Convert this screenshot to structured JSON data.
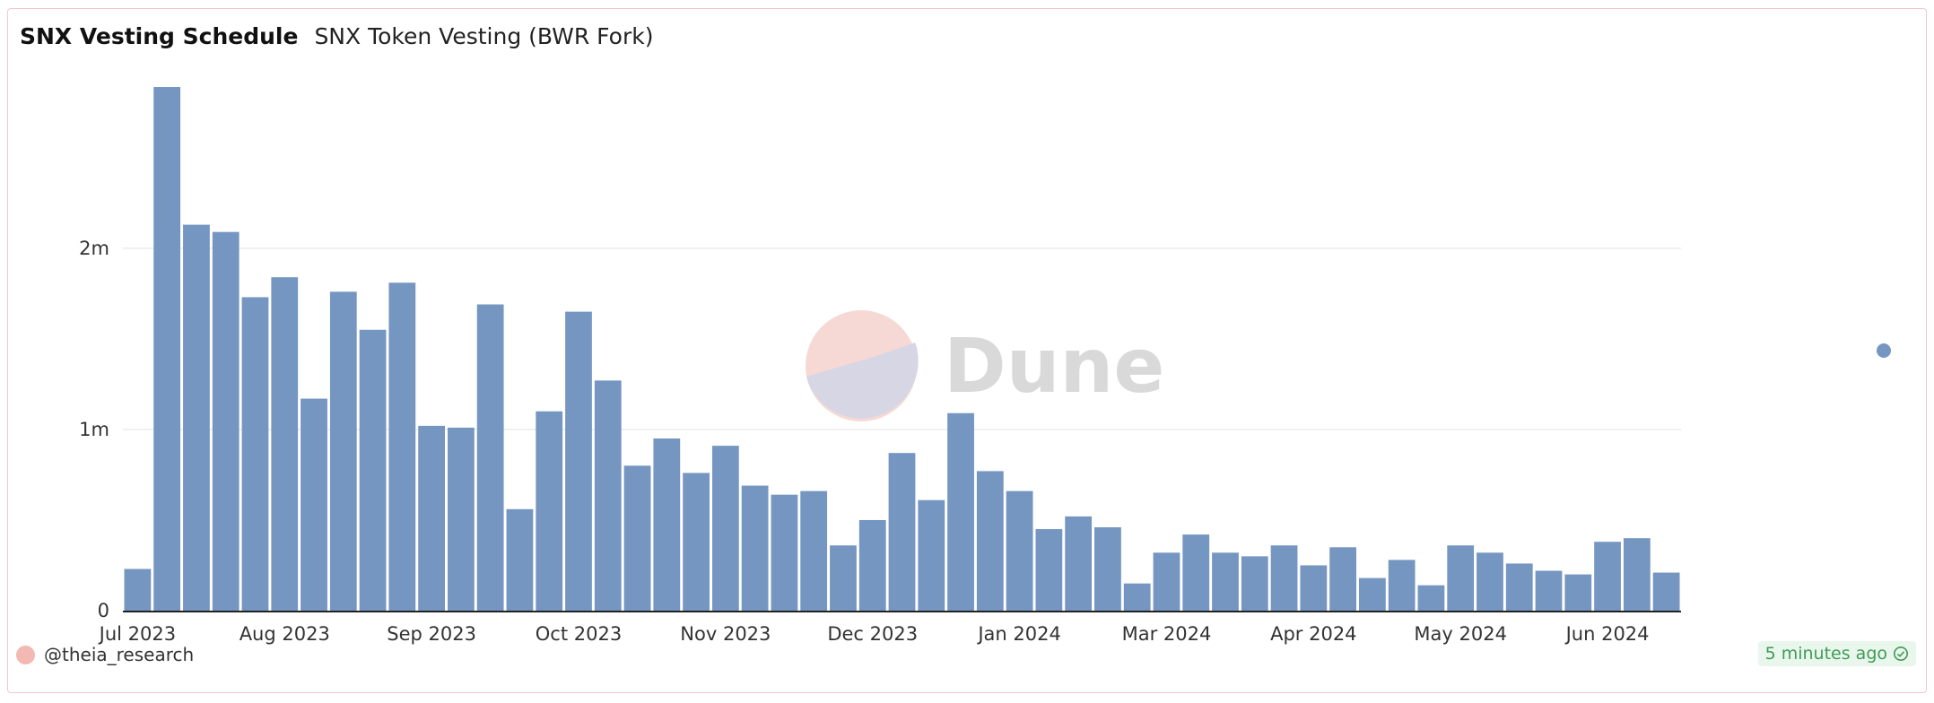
{
  "header": {
    "title": "SNX Vesting Schedule",
    "subtitle": "SNX Token Vesting (BWR Fork)"
  },
  "footer": {
    "username": "@theia_research",
    "updated": "5 minutes ago"
  },
  "watermark": {
    "text": "Dune"
  },
  "colors": {
    "bar": "#7596c0",
    "grid": "#ececec",
    "axis": "#222222"
  },
  "chart_data": {
    "type": "bar",
    "title": "SNX Token Vesting (BWR Fork)",
    "xlabel": "",
    "ylabel": "",
    "ylim": [
      0,
      2900000
    ],
    "y_ticks": [
      {
        "value": 0,
        "label": "0"
      },
      {
        "value": 1000000,
        "label": "1m"
      },
      {
        "value": 2000000,
        "label": "2m"
      }
    ],
    "x_tick_labels": [
      {
        "label": "Jul 2023",
        "index": 0.5
      },
      {
        "label": "Aug 2023",
        "index": 5.5
      },
      {
        "label": "Sep 2023",
        "index": 10.5
      },
      {
        "label": "Oct 2023",
        "index": 15.5
      },
      {
        "label": "Nov 2023",
        "index": 20.5
      },
      {
        "label": "Dec 2023",
        "index": 25.5
      },
      {
        "label": "Jan 2024",
        "index": 30.5
      },
      {
        "label": "Mar 2024",
        "index": 35.5
      },
      {
        "label": "Apr 2024",
        "index": 40.5
      },
      {
        "label": "May 2024",
        "index": 45.5
      },
      {
        "label": "Jun 2024",
        "index": 50.5
      }
    ],
    "grid": true,
    "legend": "right",
    "values": [
      230000,
      2890000,
      2130000,
      2090000,
      1730000,
      1840000,
      1170000,
      1760000,
      1550000,
      1810000,
      1020000,
      1010000,
      1690000,
      560000,
      1100000,
      1650000,
      1270000,
      800000,
      950000,
      760000,
      910000,
      690000,
      640000,
      660000,
      360000,
      500000,
      870000,
      610000,
      1090000,
      770000,
      660000,
      450000,
      520000,
      460000,
      150000,
      320000,
      420000,
      320000,
      300000,
      360000,
      250000,
      350000,
      180000,
      280000,
      140000,
      360000,
      320000,
      260000,
      220000,
      200000,
      380000,
      400000,
      210000
    ]
  }
}
